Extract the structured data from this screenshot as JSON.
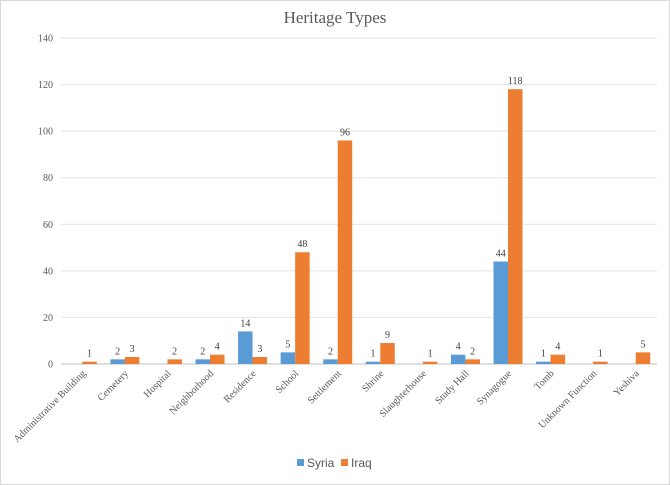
{
  "chart_data": {
    "type": "bar",
    "title": "Heritage Types",
    "categories": [
      "Administrative Building",
      "Cemetery",
      "Hospital",
      "Neighborhood",
      "Residence",
      "School",
      "Settlement",
      "Shrine",
      "Slaughterhouse",
      "Study Hall",
      "Synagogue",
      "Tomb",
      "Unknown Function",
      "Yeshiva"
    ],
    "series": [
      {
        "name": "Syria",
        "values": [
          null,
          2,
          null,
          2,
          14,
          5,
          2,
          1,
          null,
          4,
          44,
          1,
          null,
          null
        ],
        "color": "#5b9bd5"
      },
      {
        "name": "Iraq",
        "values": [
          1,
          3,
          2,
          4,
          3,
          48,
          96,
          9,
          1,
          2,
          118,
          4,
          1,
          5
        ],
        "color": "#ed7d31"
      }
    ],
    "ylim": [
      0,
      140
    ],
    "yticks": [
      0,
      20,
      40,
      60,
      80,
      100,
      120,
      140
    ],
    "grid": true,
    "legend": "bottom",
    "data_labels": true
  }
}
